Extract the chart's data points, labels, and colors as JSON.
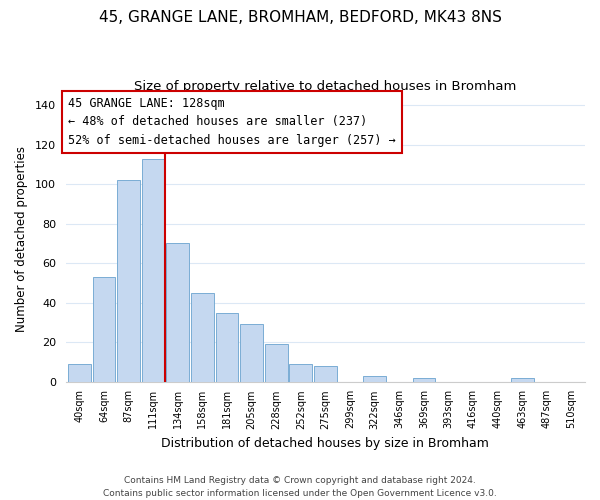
{
  "title": "45, GRANGE LANE, BROMHAM, BEDFORD, MK43 8NS",
  "subtitle": "Size of property relative to detached houses in Bromham",
  "xlabel": "Distribution of detached houses by size in Bromham",
  "ylabel": "Number of detached properties",
  "bar_labels": [
    "40sqm",
    "64sqm",
    "87sqm",
    "111sqm",
    "134sqm",
    "158sqm",
    "181sqm",
    "205sqm",
    "228sqm",
    "252sqm",
    "275sqm",
    "299sqm",
    "322sqm",
    "346sqm",
    "369sqm",
    "393sqm",
    "416sqm",
    "440sqm",
    "463sqm",
    "487sqm",
    "510sqm"
  ],
  "bar_values": [
    9,
    53,
    102,
    113,
    70,
    45,
    35,
    29,
    19,
    9,
    8,
    0,
    3,
    0,
    2,
    0,
    0,
    0,
    2,
    0,
    0
  ],
  "bar_color": "#c5d8f0",
  "bar_edge_color": "#7aadd4",
  "vline_color": "#cc0000",
  "ylim": [
    0,
    145
  ],
  "yticks": [
    0,
    20,
    40,
    60,
    80,
    100,
    120,
    140
  ],
  "annotation_title": "45 GRANGE LANE: 128sqm",
  "annotation_line1": "← 48% of detached houses are smaller (237)",
  "annotation_line2": "52% of semi-detached houses are larger (257) →",
  "annotation_box_color": "#ffffff",
  "annotation_box_edge_color": "#cc0000",
  "footer_line1": "Contains HM Land Registry data © Crown copyright and database right 2024.",
  "footer_line2": "Contains public sector information licensed under the Open Government Licence v3.0.",
  "background_color": "#ffffff",
  "grid_color": "#dce8f5",
  "title_fontsize": 11,
  "subtitle_fontsize": 9.5,
  "ylabel_fontsize": 8.5,
  "xlabel_fontsize": 9,
  "tick_fontsize": 7,
  "ann_fontsize": 8.5,
  "footer_fontsize": 6.5
}
